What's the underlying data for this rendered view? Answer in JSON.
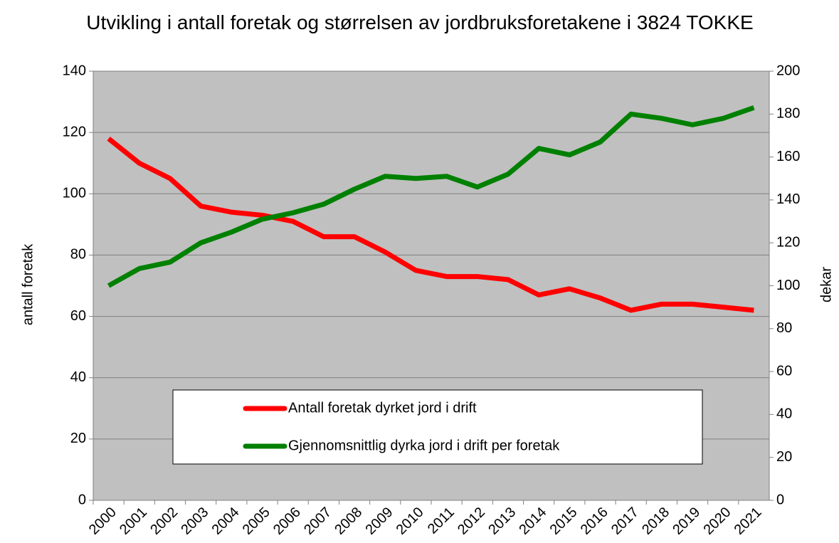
{
  "chart_data": {
    "type": "line",
    "title": "Utvikling i antall foretak og størrelsen av jordbruksforetakene i 3824 TOKKE",
    "ylabel": "antall foretak",
    "y2label": "dekar",
    "categories": [
      "2000",
      "2001",
      "2002",
      "2003",
      "2004",
      "2005",
      "2006",
      "2007",
      "2008",
      "2009",
      "2010",
      "2011",
      "2012",
      "2013",
      "2014",
      "2015",
      "2016",
      "2017",
      "2018",
      "2019",
      "2020",
      "2021"
    ],
    "series": [
      {
        "name": "Antall foretak dyrket jord i drift",
        "color": "#ff0000",
        "values": [
          118,
          110,
          105,
          96,
          94,
          93,
          91,
          86,
          86,
          81,
          75,
          73,
          73,
          72,
          67,
          69,
          66,
          62,
          64,
          64,
          63,
          62
        ]
      },
      {
        "name": "Gjennomsnittlig dyrka jord i drift per foretak",
        "color": "#008000",
        "axis": "y2",
        "values": [
          100,
          108,
          111,
          120,
          125,
          131,
          134,
          138,
          145,
          151,
          150,
          151,
          146,
          152,
          164,
          161,
          167,
          180,
          178,
          175,
          178,
          183
        ]
      }
    ],
    "ylim": [
      0,
      140
    ],
    "yticks": [
      0,
      20,
      40,
      60,
      80,
      100,
      120,
      140
    ],
    "y2lim": [
      0,
      200
    ],
    "y2ticks": [
      0,
      20,
      40,
      60,
      80,
      100,
      120,
      140,
      160,
      180,
      200
    ],
    "grid": true
  }
}
